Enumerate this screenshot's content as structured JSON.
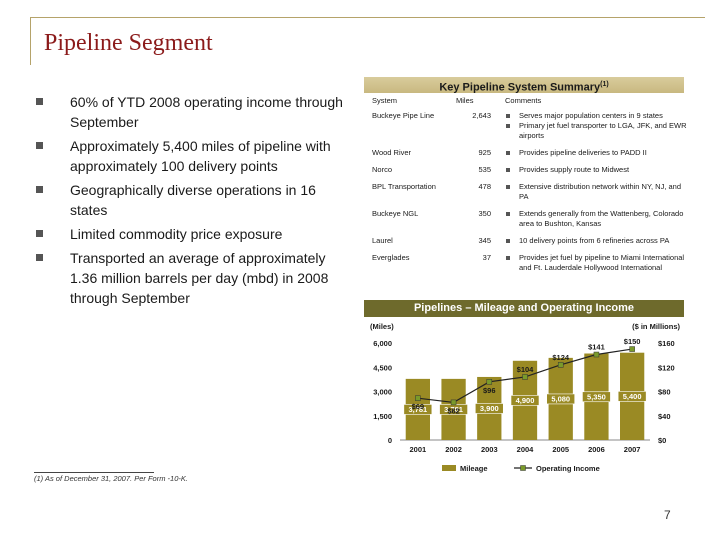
{
  "title": "Pipeline Segment",
  "bullets": [
    "60% of YTD 2008 operating income through September",
    "Approximately 5,400 miles of pipeline with approximately 100 delivery points",
    "Geographically diverse operations in 16 states",
    "Limited commodity price exposure",
    "Transported an average of approximately 1.36 million barrels per day (mbd) in 2008 through September"
  ],
  "summary": {
    "header": "Key Pipeline System Summary",
    "header_note": "(1)",
    "columns": [
      "System",
      "Miles",
      "Comments"
    ],
    "rows": [
      {
        "system": "Buckeye Pipe Line",
        "miles": "2,643",
        "comments": [
          "Serves major population centers in 9 states",
          "Primary jet fuel transporter to LGA, JFK, and EWR airports"
        ]
      },
      {
        "system": "Wood River",
        "miles": "925",
        "comments": [
          "Provides pipeline deliveries to PADD II"
        ]
      },
      {
        "system": "Norco",
        "miles": "535",
        "comments": [
          "Provides supply route to Midwest"
        ]
      },
      {
        "system": "BPL Transportation",
        "miles": "478",
        "comments": [
          "Extensive distribution network within NY, NJ, and PA"
        ]
      },
      {
        "system": "Buckeye NGL",
        "miles": "350",
        "comments": [
          "Extends generally from the Wattenberg, Colorado area to Bushton, Kansas"
        ]
      },
      {
        "system": "Laurel",
        "miles": "345",
        "comments": [
          "10 delivery points from 6 refineries across PA"
        ]
      },
      {
        "system": "Everglades",
        "miles": "37",
        "comments": [
          "Provides jet fuel by pipeline to Miami International and Ft. Lauderdale Hollywood International"
        ]
      }
    ]
  },
  "chart_data": {
    "type": "bar",
    "title": "Pipelines – Mileage and Operating Income",
    "left_axis_label": "(Miles)",
    "right_axis_label": "($ in Millions)",
    "categories": [
      "2001",
      "2002",
      "2003",
      "2004",
      "2005",
      "2006",
      "2007"
    ],
    "left_ticks": [
      "6,000",
      "4,500",
      "3,000",
      "1,500",
      "0"
    ],
    "right_ticks": [
      "$160",
      "$120",
      "$80",
      "$40",
      "$0"
    ],
    "ylim_left": [
      0,
      6000
    ],
    "ylim_right": [
      0,
      160
    ],
    "series": [
      {
        "name": "Mileage",
        "kind": "bar",
        "values": [
          3781,
          3781,
          3900,
          4900,
          5080,
          5350,
          5400
        ],
        "labels": [
          "3,781",
          "3,781",
          "3,900",
          "4,900",
          "5,080",
          "5,350",
          "5,400"
        ]
      },
      {
        "name": "Operating Income",
        "kind": "line",
        "values": [
          69,
          62,
          96,
          104,
          124,
          141,
          150
        ],
        "labels": [
          "$69",
          "$62",
          "$96",
          "$104",
          "$124",
          "$141",
          "$150"
        ]
      }
    ],
    "colors": {
      "bar": "#9a8a24",
      "line": "#222222",
      "marker": "#7a9a2a",
      "label_box": "#9a8a24"
    },
    "legend_position": "bottom"
  },
  "footnote": "(1) As of December 31, 2007. Per Form -10-K.",
  "page_number": "7"
}
